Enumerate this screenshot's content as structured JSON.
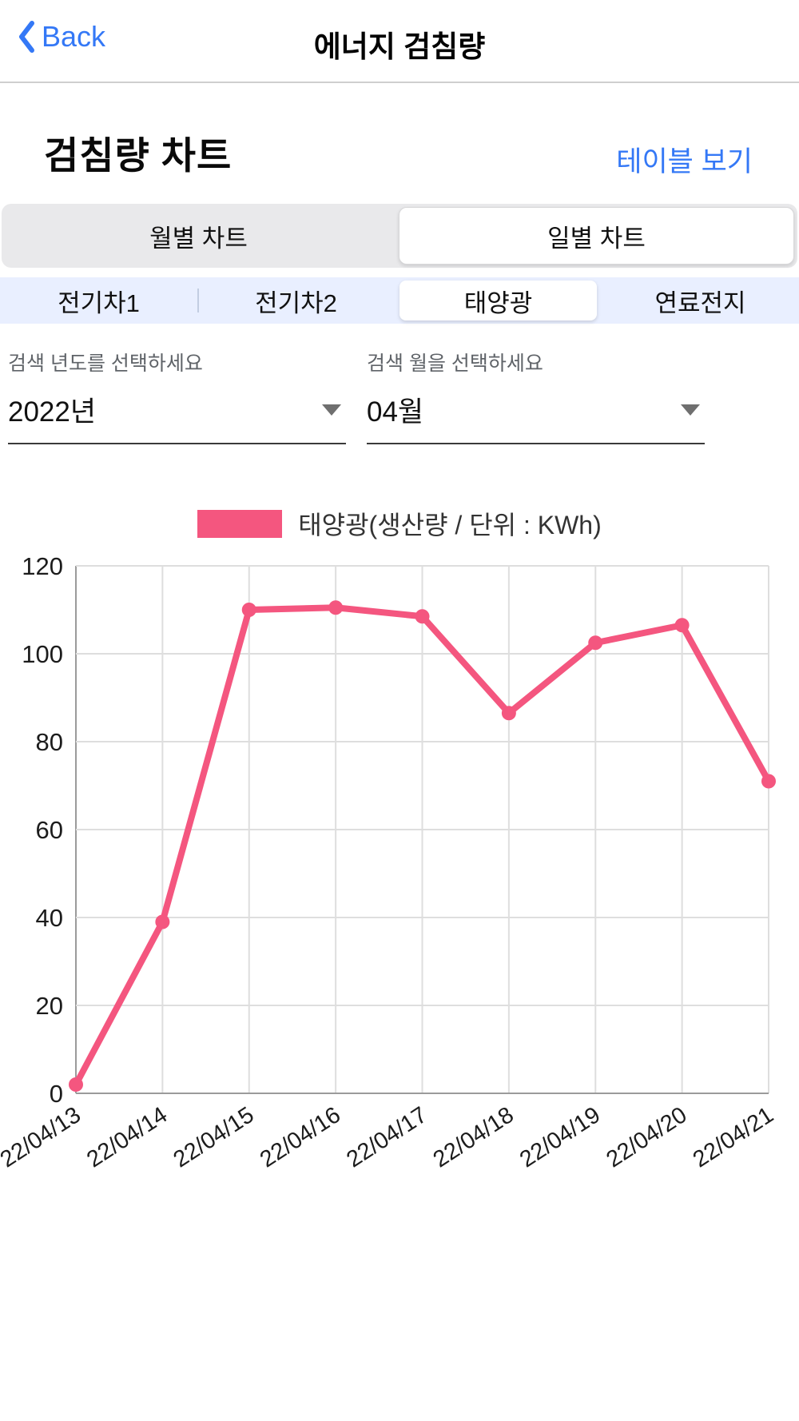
{
  "nav": {
    "back_label": "Back",
    "title": "에너지 검침량"
  },
  "section": {
    "title": "검침량 차트",
    "table_link": "테이블 보기"
  },
  "period_tabs": {
    "items": [
      {
        "label": "월별 차트",
        "selected": false
      },
      {
        "label": "일별 차트",
        "selected": true
      }
    ]
  },
  "source_tabs": {
    "items": [
      {
        "label": "전기차1",
        "selected": false
      },
      {
        "label": "전기차2",
        "selected": false
      },
      {
        "label": "태양광",
        "selected": true
      },
      {
        "label": "연료전지",
        "selected": false
      }
    ]
  },
  "filters": {
    "year": {
      "label": "검색 년도를 선택하세요",
      "value": "2022년"
    },
    "month": {
      "label": "검색 월을 선택하세요",
      "value": "04월"
    }
  },
  "chart_data": {
    "type": "line",
    "title": "",
    "legend": "태양광(생산량 / 단위 : KWh)",
    "series_color": "#f4567f",
    "categories": [
      "22/04/13",
      "22/04/14",
      "22/04/15",
      "22/04/16",
      "22/04/17",
      "22/04/18",
      "22/04/19",
      "22/04/20",
      "22/04/21"
    ],
    "values": [
      2,
      39,
      110,
      110.5,
      108.5,
      86.5,
      102.5,
      106.5,
      71
    ],
    "ylim": [
      0,
      120
    ],
    "ytick_step": 20,
    "grid": true,
    "legend_position": "top",
    "ylabel": "",
    "xlabel": ""
  }
}
